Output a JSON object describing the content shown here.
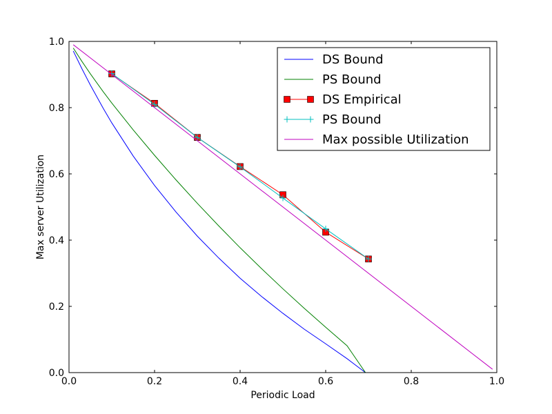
{
  "chart_data": {
    "type": "line",
    "title": "",
    "xlabel": "Periodic Load",
    "ylabel": "Max server Utilization",
    "xlim": [
      0,
      1.0
    ],
    "ylim": [
      0,
      1.0
    ],
    "xticks": [
      0.0,
      0.2,
      0.4,
      0.6,
      0.8,
      1.0
    ],
    "yticks": [
      0.0,
      0.2,
      0.4,
      0.6,
      0.8,
      1.0
    ],
    "xtick_labels": [
      "0.0",
      "0.2",
      "0.4",
      "0.6",
      "0.8",
      "1.0"
    ],
    "ytick_labels": [
      "0.0",
      "0.2",
      "0.4",
      "0.6",
      "0.8",
      "1.0"
    ],
    "grid": false,
    "legend_position": "top-right",
    "series": [
      {
        "name": "DS Bound",
        "color": "#0000ff",
        "marker": "none",
        "x": [
          0.01,
          0.03,
          0.05,
          0.08,
          0.1,
          0.15,
          0.2,
          0.25,
          0.3,
          0.35,
          0.4,
          0.45,
          0.5,
          0.55,
          0.6,
          0.65,
          0.693
        ],
        "y": [
          0.971,
          0.918,
          0.868,
          0.798,
          0.754,
          0.654,
          0.565,
          0.485,
          0.412,
          0.346,
          0.285,
          0.23,
          0.179,
          0.131,
          0.087,
          0.042,
          0.0
        ]
      },
      {
        "name": "PS Bound",
        "color": "#008000",
        "marker": "none",
        "x": [
          0.01,
          0.03,
          0.05,
          0.08,
          0.1,
          0.15,
          0.2,
          0.25,
          0.3,
          0.35,
          0.4,
          0.45,
          0.5,
          0.55,
          0.6,
          0.65,
          0.693
        ],
        "y": [
          0.98,
          0.94,
          0.902,
          0.848,
          0.814,
          0.733,
          0.656,
          0.582,
          0.511,
          0.443,
          0.377,
          0.314,
          0.253,
          0.194,
          0.137,
          0.081,
          0.0
        ]
      },
      {
        "name": "DS Empirical",
        "color": "#ff0000",
        "marker": "square",
        "x": [
          0.1,
          0.2,
          0.3,
          0.4,
          0.5,
          0.6,
          0.7
        ],
        "y": [
          0.902,
          0.813,
          0.71,
          0.622,
          0.537,
          0.424,
          0.343
        ]
      },
      {
        "name": "PS Bound",
        "color": "#00bfbf",
        "marker": "plus",
        "x": [
          0.1,
          0.2,
          0.3,
          0.4,
          0.5,
          0.6,
          0.7
        ],
        "y": [
          0.903,
          0.81,
          0.71,
          0.621,
          0.527,
          0.434,
          0.343
        ]
      },
      {
        "name": "Max possible Utilization",
        "color": "#bf00bf",
        "marker": "none",
        "x": [
          0.01,
          0.99
        ],
        "y": [
          0.99,
          0.01
        ]
      }
    ]
  }
}
